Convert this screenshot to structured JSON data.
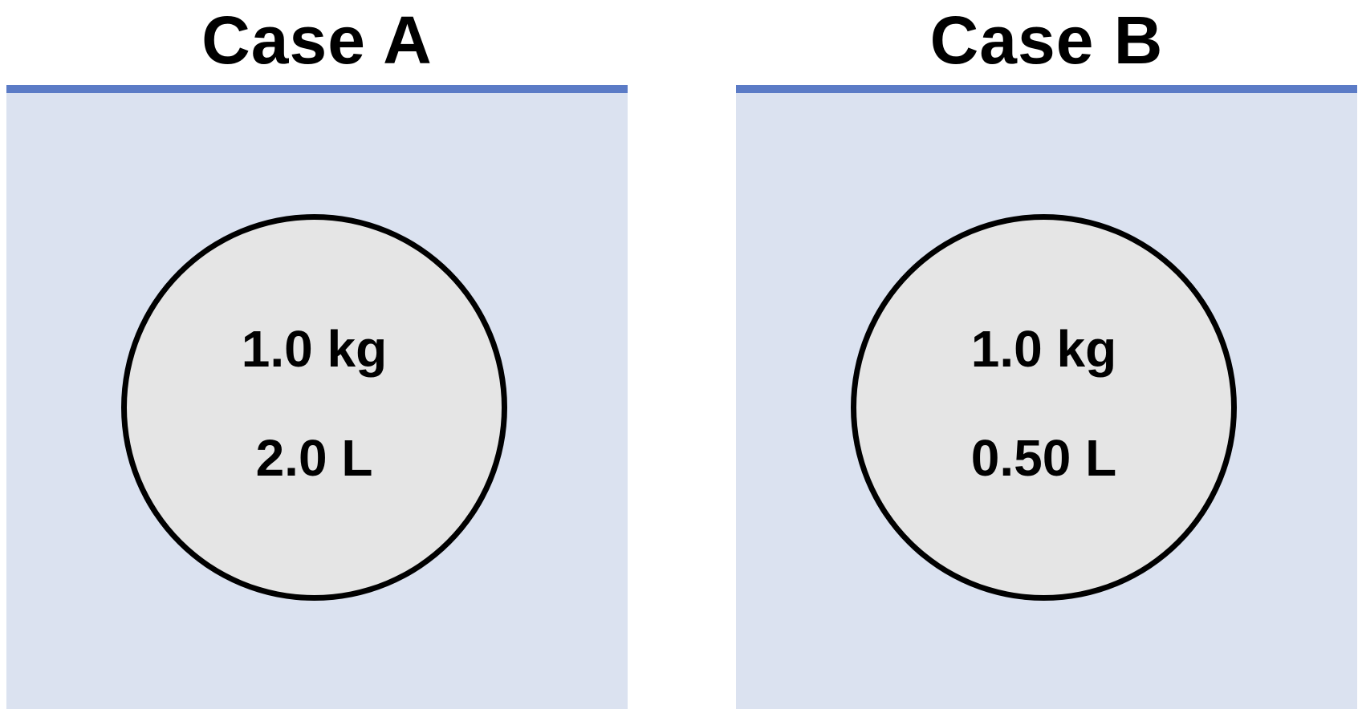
{
  "colors": {
    "surface": "#5b7bc6",
    "liquid": "#dbe2f0",
    "object_fill": "#e5e5e5",
    "outline": "#000000"
  },
  "cases": [
    {
      "title": "Case A",
      "mass": "1.0 kg",
      "volume": "2.0 L"
    },
    {
      "title": "Case B",
      "mass": "1.0 kg",
      "volume": "0.50 L"
    }
  ]
}
